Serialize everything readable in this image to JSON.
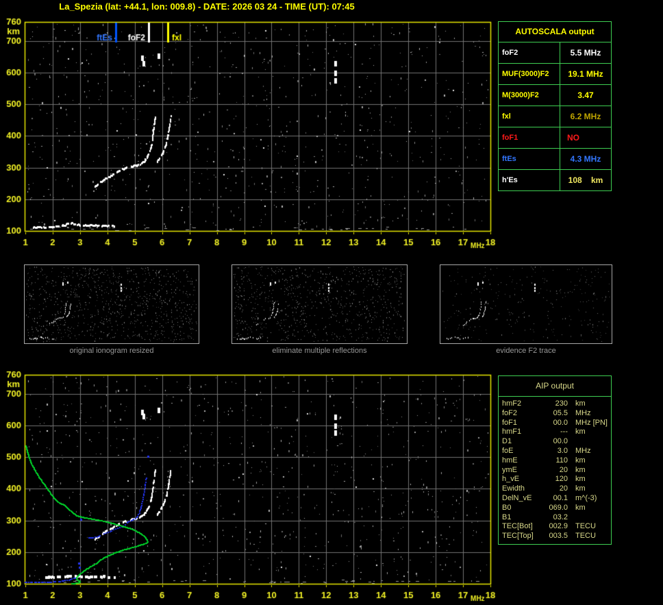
{
  "title": "La_Spezia (lat: +44.1, lon: 009.8) - DATE: 2026 03 24 - TIME (UT): 07:45",
  "colors": {
    "background": "#000000",
    "axis_yellow": "#e8e800",
    "tick_label_yellow": "#f2f226",
    "grid_gray": "#757575",
    "table_green": "#3ecf52",
    "trace_white": "#ffffff",
    "profile_green": "#00d22a",
    "restored_blue": "#2233ee",
    "aip_text": "#d8d88a"
  },
  "autoscala": {
    "header": "AUTOSCALA output",
    "rows": [
      {
        "label": "foF2",
        "value": "5.5 MHz",
        "label_color": "#ffffff",
        "value_color": "#ffffff",
        "align": "center"
      },
      {
        "label": "MUF(3000)F2",
        "value": "19.1 MHz",
        "label_color": "#ffff00",
        "value_color": "#ffff00",
        "align": "center"
      },
      {
        "label": "M(3000)F2",
        "value": "3.47",
        "label_color": "#ffff00",
        "value_color": "#ffff00",
        "align": "center"
      },
      {
        "label": "fxl",
        "value": "6.2 MHz",
        "label_color": "#ffff00",
        "value_color": "#bfa500",
        "align": "center"
      },
      {
        "label": "foF1",
        "value": "NO",
        "label_color": "#ff1a1a",
        "value_color": "#ff1a1a",
        "align": "left"
      },
      {
        "label": "ftEs",
        "value": "4.3 MHz",
        "label_color": "#3377ff",
        "value_color": "#3377ff",
        "align": "center"
      },
      {
        "label": "h'Es",
        "value": "108    km",
        "label_color": "#ffffff",
        "value_color": "#f0e860",
        "align": "center"
      }
    ]
  },
  "aip": {
    "header": "AIP output",
    "rows": [
      {
        "label": "hmF2",
        "value": "230",
        "unit": "km",
        "extra": ""
      },
      {
        "label": "foF2",
        "value": "05.5",
        "unit": "MHz",
        "extra": ""
      },
      {
        "label": "foF1",
        "value": "00.0",
        "unit": "MHz",
        "extra": "[PN]"
      },
      {
        "label": "hmF1",
        "value": "---",
        "unit": "km",
        "extra": ""
      },
      {
        "label": "D1",
        "value": "00.0",
        "unit": "",
        "extra": ""
      },
      {
        "label": "foE",
        "value": "3.0",
        "unit": "MHz",
        "extra": ""
      },
      {
        "label": "hmE",
        "value": "110",
        "unit": "km",
        "extra": ""
      },
      {
        "label": "ymE",
        "value": "20",
        "unit": "km",
        "extra": ""
      },
      {
        "label": "h_vE",
        "value": "120",
        "unit": "km",
        "extra": ""
      },
      {
        "label": "Ewidth",
        "value": "20",
        "unit": "km",
        "extra": ""
      },
      {
        "label": "DelN_vE",
        "value": "00.1",
        "unit": "m^(-3)",
        "extra": ""
      },
      {
        "label": "B0",
        "value": "069.0",
        "unit": "km",
        "extra": ""
      },
      {
        "label": "B1",
        "value": "03.2",
        "unit": "",
        "extra": ""
      },
      {
        "label": "TEC[Bot]",
        "value": "002.9",
        "unit": "TECU",
        "extra": ""
      },
      {
        "label": "TEC[Top]",
        "value": "003.5",
        "unit": "TECU",
        "extra": ""
      }
    ]
  },
  "thumbnails": {
    "captions": [
      "original ionogram resized",
      "eliminate multiple reflections",
      "evidence F2 trace"
    ]
  },
  "chart_data": [
    {
      "type": "scatter",
      "name": "scaled ionogram",
      "xlabel": "MHz",
      "ylabel": "km",
      "xlim": [
        1,
        18
      ],
      "ylim": [
        100,
        760
      ],
      "x_ticks": [
        1,
        2,
        3,
        4,
        5,
        6,
        7,
        8,
        9,
        10,
        11,
        12,
        13,
        14,
        15,
        16,
        17,
        18
      ],
      "y_ticks": [
        760,
        700,
        600,
        500,
        400,
        300,
        200,
        100
      ],
      "grid": true,
      "axis_color": "#e8e800",
      "grid_color": "#757575",
      "markers": [
        {
          "label": "ftEs",
          "freq_mhz": 4.3,
          "color": "#3377ff",
          "line_color": "#0055ff",
          "label_pos": "left"
        },
        {
          "label": "foF2",
          "freq_mhz": 5.5,
          "color": "#ffffff",
          "line_color": "#ffffff",
          "label_pos": "left"
        },
        {
          "label": "fxl",
          "freq_mhz": 6.2,
          "color": "#ffff00",
          "line_color": "#ffff00",
          "label_pos": "right"
        }
      ],
      "series": [
        {
          "name": "Es trace",
          "color": "#ffffff",
          "style": "dash",
          "width": 3,
          "points": [
            [
              1.3,
              110
            ],
            [
              1.55,
              111
            ],
            [
              1.8,
              112
            ],
            [
              2.1,
              113
            ],
            [
              2.45,
              117
            ],
            [
              2.62,
              125
            ],
            [
              2.8,
              121
            ],
            [
              3.05,
              117
            ],
            [
              3.35,
              117
            ],
            [
              3.65,
              116
            ],
            [
              3.95,
              116
            ],
            [
              4.25,
              114
            ]
          ]
        },
        {
          "name": "F2 ordinary trace",
          "color": "#ffffff",
          "style": "dash",
          "width": 3,
          "points": [
            [
              3.55,
              240
            ],
            [
              3.75,
              252
            ],
            [
              3.9,
              262
            ],
            [
              4.25,
              280
            ],
            [
              4.6,
              295
            ],
            [
              4.9,
              303
            ],
            [
              5.15,
              308
            ],
            [
              5.35,
              318
            ],
            [
              5.45,
              331
            ],
            [
              5.55,
              350
            ],
            [
              5.62,
              372
            ],
            [
              5.66,
              396
            ],
            [
              5.7,
              422
            ],
            [
              5.73,
              444
            ],
            [
              5.76,
              462
            ]
          ]
        },
        {
          "name": "F2 extraordinary trace",
          "color": "#ffffff",
          "style": "dash",
          "width": 3,
          "points": [
            [
              5.82,
              318
            ],
            [
              5.95,
              334
            ],
            [
              6.05,
              350
            ],
            [
              6.15,
              372
            ],
            [
              6.21,
              396
            ],
            [
              6.26,
              422
            ],
            [
              6.3,
              444
            ],
            [
              6.33,
              463
            ]
          ]
        }
      ],
      "echo_dots": [
        [
          5.28,
          645
        ],
        [
          5.32,
          629
        ],
        [
          5.89,
          651
        ],
        [
          12.33,
          628
        ],
        [
          12.33,
          597
        ],
        [
          12.33,
          573
        ]
      ]
    },
    {
      "type": "scatter",
      "name": "ionogram with AIP inversion",
      "xlabel": "MHz",
      "ylabel": "km",
      "xlim": [
        1,
        18
      ],
      "ylim": [
        100,
        760
      ],
      "x_ticks": [
        1,
        2,
        3,
        4,
        5,
        6,
        7,
        8,
        9,
        10,
        11,
        12,
        13,
        14,
        15,
        16,
        17,
        18
      ],
      "y_ticks": [
        760,
        700,
        600,
        500,
        400,
        300,
        200,
        100
      ],
      "grid": true,
      "axis_color": "#e8e800",
      "grid_color": "#757575",
      "series": [
        {
          "name": "Es trace",
          "color": "#ffffff",
          "style": "dash",
          "width": 4,
          "points": [
            [
              1.75,
              119
            ],
            [
              2.1,
              121
            ],
            [
              2.5,
              123
            ],
            [
              2.8,
              124
            ],
            [
              3.1,
              122
            ],
            [
              3.5,
              121
            ],
            [
              3.9,
              122
            ],
            [
              4.3,
              120
            ]
          ]
        },
        {
          "name": "F2 ordinary trace",
          "color": "#ffffff",
          "style": "dash",
          "width": 3,
          "points": [
            [
              3.55,
              240
            ],
            [
              3.75,
              252
            ],
            [
              3.9,
              262
            ],
            [
              4.25,
              280
            ],
            [
              4.6,
              295
            ],
            [
              4.9,
              303
            ],
            [
              5.15,
              308
            ],
            [
              5.35,
              318
            ],
            [
              5.45,
              331
            ],
            [
              5.55,
              350
            ],
            [
              5.62,
              372
            ],
            [
              5.66,
              396
            ],
            [
              5.7,
              422
            ],
            [
              5.73,
              444
            ],
            [
              5.76,
              462
            ]
          ]
        },
        {
          "name": "F2 extraordinary trace",
          "color": "#ffffff",
          "style": "dash",
          "width": 3,
          "points": [
            [
              5.82,
              318
            ],
            [
              5.95,
              334
            ],
            [
              6.05,
              350
            ],
            [
              6.15,
              372
            ],
            [
              6.21,
              396
            ],
            [
              6.26,
              422
            ],
            [
              6.3,
              444
            ],
            [
              6.33,
              463
            ]
          ]
        },
        {
          "name": "restored Es trace",
          "color": "#2233ee",
          "style": "dot",
          "width": 2,
          "points": [
            [
              1.0,
              104
            ],
            [
              1.2,
              104
            ],
            [
              1.4,
              104
            ],
            [
              1.6,
              104
            ],
            [
              1.8,
              104
            ],
            [
              1.95,
              105
            ],
            [
              2.15,
              106
            ],
            [
              2.35,
              108
            ],
            [
              2.6,
              112
            ],
            [
              2.75,
              116
            ],
            [
              2.9,
              121
            ]
          ]
        },
        {
          "name": "restored F2 trace",
          "color": "#2233ee",
          "style": "dot",
          "width": 2,
          "points": [
            [
              3.33,
              245
            ],
            [
              3.5,
              246
            ],
            [
              3.65,
              247
            ],
            [
              3.83,
              256
            ],
            [
              4.08,
              263
            ],
            [
              4.33,
              274
            ],
            [
              4.58,
              281
            ],
            [
              4.79,
              297
            ],
            [
              4.96,
              303
            ],
            [
              5.09,
              310
            ],
            [
              5.17,
              323
            ],
            [
              5.24,
              343
            ],
            [
              5.29,
              364
            ],
            [
              5.34,
              386
            ],
            [
              5.38,
              405
            ],
            [
              5.42,
              433
            ]
          ]
        },
        {
          "name": "electron density profile",
          "color": "#00d22a",
          "style": "line",
          "width": 2,
          "points": [
            [
              1.0,
              538
            ],
            [
              1.1,
              505
            ],
            [
              1.22,
              478
            ],
            [
              1.35,
              458
            ],
            [
              1.5,
              436
            ],
            [
              1.65,
              418
            ],
            [
              1.82,
              398
            ],
            [
              2.0,
              375
            ],
            [
              2.2,
              358
            ],
            [
              2.41,
              350
            ],
            [
              2.62,
              333
            ],
            [
              2.83,
              318
            ],
            [
              3.05,
              312
            ],
            [
              3.3,
              308
            ],
            [
              3.55,
              304
            ],
            [
              3.83,
              300
            ],
            [
              4.05,
              295
            ],
            [
              4.3,
              289
            ],
            [
              4.55,
              283
            ],
            [
              4.75,
              278
            ],
            [
              4.95,
              272
            ],
            [
              5.1,
              265
            ],
            [
              5.25,
              257
            ],
            [
              5.35,
              250
            ],
            [
              5.42,
              242
            ],
            [
              5.45,
              236
            ],
            [
              5.44,
              232
            ],
            [
              5.38,
              229
            ],
            [
              5.25,
              226
            ],
            [
              5.05,
              220
            ],
            [
              4.75,
              213
            ],
            [
              4.5,
              207
            ],
            [
              4.25,
              199
            ],
            [
              4.0,
              190
            ],
            [
              3.78,
              180
            ],
            [
              3.58,
              166
            ],
            [
              3.35,
              155
            ],
            [
              3.16,
              145
            ],
            [
              3.02,
              135
            ],
            [
              2.91,
              127
            ],
            [
              2.84,
              120
            ],
            [
              2.86,
              115
            ],
            [
              2.94,
              111
            ],
            [
              2.99,
              108
            ],
            [
              2.92,
              105
            ],
            [
              2.8,
              103
            ],
            [
              2.68,
              102
            ]
          ]
        }
      ],
      "blue_dots": [
        [
          5.49,
          503
        ],
        [
          3.04,
          303
        ],
        [
          2.96,
          166
        ],
        [
          2.98,
          152
        ]
      ],
      "echo_dots": [
        [
          5.28,
          641
        ],
        [
          5.32,
          627
        ],
        [
          5.89,
          648
        ],
        [
          12.33,
          626
        ],
        [
          12.33,
          597
        ],
        [
          12.33,
          575
        ]
      ]
    }
  ]
}
